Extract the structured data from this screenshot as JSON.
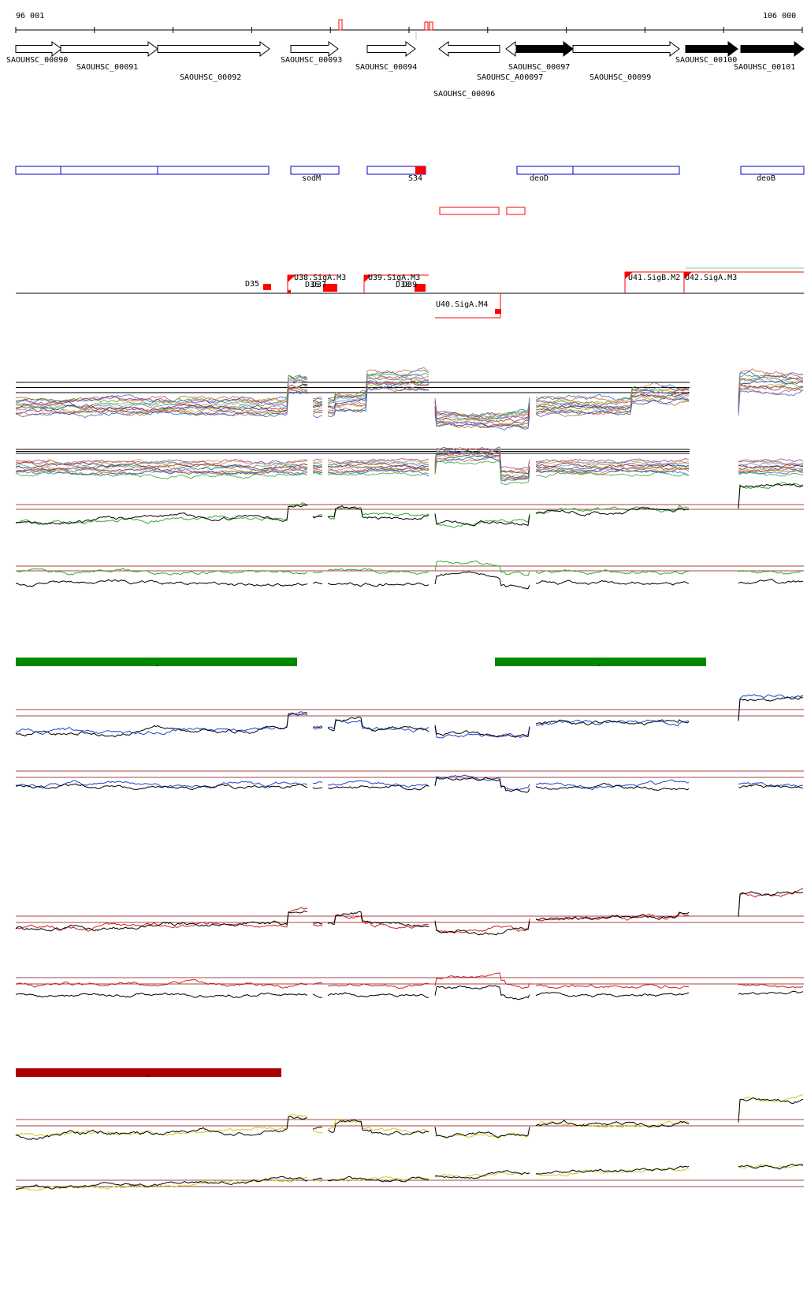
{
  "axis": {
    "start_label": "96 001",
    "end_label": "106 000"
  },
  "genes": [
    {
      "name": "SAOUHSC_00090",
      "strand": "+",
      "filled": false
    },
    {
      "name": "SAOUHSC_00091",
      "strand": "+",
      "filled": false
    },
    {
      "name": "SAOUHSC_00092",
      "strand": "+",
      "filled": false
    },
    {
      "name": "SAOUHSC_00093",
      "strand": "+",
      "filled": false
    },
    {
      "name": "SAOUHSC_00094",
      "strand": "+",
      "filled": false
    },
    {
      "name": "SAOUHSC_00096",
      "strand": "-",
      "filled": false
    },
    {
      "name": "SAOUHSC_A00097",
      "strand": "-",
      "filled": false
    },
    {
      "name": "SAOUHSC_00097",
      "strand": "+",
      "filled": true
    },
    {
      "name": "SAOUHSC_00099",
      "strand": "+",
      "filled": false
    },
    {
      "name": "SAOUHSC_00100",
      "strand": "+",
      "filled": true
    },
    {
      "name": "SAOUHSC_00101",
      "strand": "+",
      "filled": true
    }
  ],
  "operon_labels": [
    "sodM",
    "S34",
    "deoD",
    "deoB"
  ],
  "promoter_labels": [
    "D35",
    "U38.SigA.M3",
    "D36",
    "D37",
    "U39.SigA.M3",
    "D38",
    "D39",
    "U40.SigA.M4",
    "U41.SigB.M2",
    "U42.SigA.M3"
  ],
  "bar_tick": "-",
  "colors": {
    "gene_stroke": "#000000",
    "operon": "#0000cc",
    "feature_red": "#ff0000",
    "green_bar": "#008800",
    "darkred_bar": "#aa0000",
    "guide": "#aa4444",
    "blue_trace": "#2244cc",
    "green_trace": "#33aa33",
    "red_trace": "#cc2222",
    "yellow_trace": "#cccc22"
  }
}
